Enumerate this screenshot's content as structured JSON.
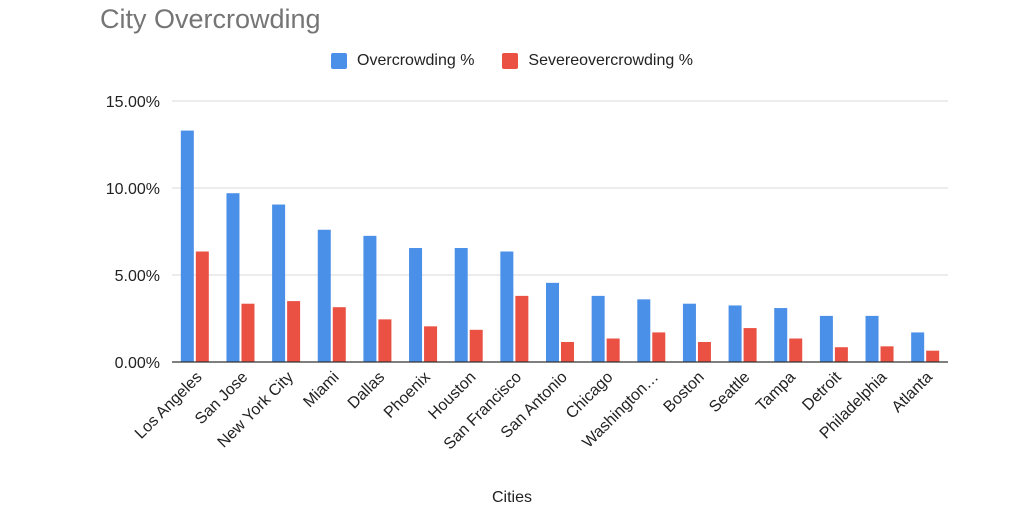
{
  "chart_data": {
    "type": "bar",
    "title": "City Overcrowding",
    "xlabel": "Cities",
    "ylabel": "",
    "ylim": [
      0,
      15
    ],
    "yticks": [
      "0.00%",
      "5.00%",
      "10.00%",
      "15.00%"
    ],
    "ytick_values": [
      0,
      5,
      10,
      15
    ],
    "grid": true,
    "legend_position": "top",
    "categories": [
      "Los Angeles",
      "San Jose",
      "New York City",
      "Miami",
      "Dallas",
      "Phoenix",
      "Houston",
      "San Francisco",
      "San Antonio",
      "Chicago",
      "Washington…",
      "Boston",
      "Seattle",
      "Tampa",
      "Detroit",
      "Philadelphia",
      "Atlanta"
    ],
    "series": [
      {
        "name": "Overcrowding %",
        "color": "#4a8fe8",
        "values": [
          13.3,
          9.7,
          9.05,
          7.6,
          7.25,
          6.55,
          6.55,
          6.35,
          4.55,
          3.8,
          3.6,
          3.35,
          3.25,
          3.1,
          2.65,
          2.65,
          1.7
        ]
      },
      {
        "name": "Severeovercrowding %",
        "color": "#ea5143",
        "values": [
          6.35,
          3.35,
          3.5,
          3.15,
          2.45,
          2.05,
          1.85,
          3.8,
          1.15,
          1.35,
          1.7,
          1.15,
          1.95,
          1.35,
          0.85,
          0.9,
          0.65
        ]
      }
    ]
  }
}
